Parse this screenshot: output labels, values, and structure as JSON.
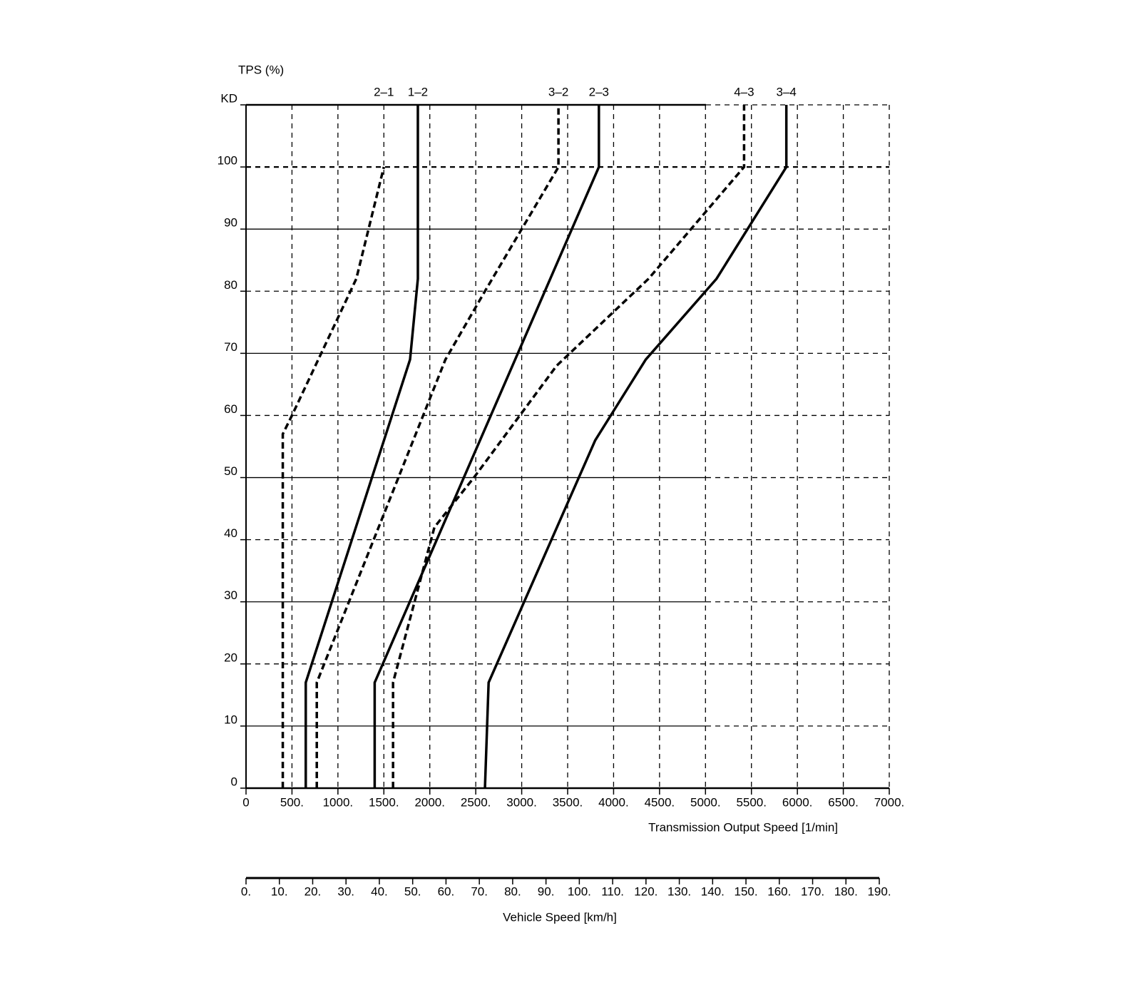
{
  "chart_data": {
    "type": "line",
    "y_axis_title": "TPS (%)",
    "x_axis_title": "Transmission Output Speed [1/min]",
    "x2_axis_title": "Vehicle Speed [km/h]",
    "xlim": [
      0,
      7000
    ],
    "xticks": [
      0,
      {
        "value": 500,
        "label": "500."
      },
      {
        "value": 1000,
        "label": "1000."
      },
      {
        "value": 1500,
        "label": "1500."
      },
      {
        "value": 2000,
        "label": "2000."
      },
      {
        "value": 2500,
        "label": "2500."
      },
      {
        "value": 3000,
        "label": "3000."
      },
      {
        "value": 3500,
        "label": "3500."
      },
      {
        "value": 4000,
        "label": "4000."
      },
      {
        "value": 4500,
        "label": "4500."
      },
      {
        "value": 5000,
        "label": "5000."
      },
      {
        "value": 5500,
        "label": "5500."
      },
      {
        "value": 6000,
        "label": "6000."
      },
      {
        "value": 6500,
        "label": "6500."
      },
      {
        "value": 7000,
        "label": "7000."
      }
    ],
    "ylim": [
      0,
      110
    ],
    "yticks": [
      0,
      10,
      20,
      30,
      40,
      50,
      60,
      70,
      80,
      90,
      100,
      {
        "value": 110,
        "label": "KD"
      }
    ],
    "x2lim": [
      0,
      190
    ],
    "x2ticks": [
      {
        "value": 0,
        "label": "0."
      },
      {
        "value": 10,
        "label": "10."
      },
      {
        "value": 20,
        "label": "20."
      },
      {
        "value": 30,
        "label": "30."
      },
      {
        "value": 40,
        "label": "40."
      },
      {
        "value": 50,
        "label": "50."
      },
      {
        "value": 60,
        "label": "60."
      },
      {
        "value": 70,
        "label": "70."
      },
      {
        "value": 80,
        "label": "80."
      },
      {
        "value": 90,
        "label": "90."
      },
      {
        "value": 100,
        "label": "100."
      },
      {
        "value": 110,
        "label": "110."
      },
      {
        "value": 120,
        "label": "120."
      },
      {
        "value": 130,
        "label": "130."
      },
      {
        "value": 140,
        "label": "140."
      },
      {
        "value": 150,
        "label": "150."
      },
      {
        "value": 160,
        "label": "160."
      },
      {
        "value": 170,
        "label": "170."
      },
      {
        "value": 180,
        "label": "180."
      },
      {
        "value": 190,
        "label": "190."
      }
    ],
    "grid": true,
    "series": [
      {
        "name": "2–1",
        "color": "#000000",
        "style": "dashed",
        "x": [
          400,
          400,
          500,
          1200,
          1500
        ],
        "values": [
          0,
          57,
          60,
          82,
          100
        ]
      },
      {
        "name": "1–2",
        "color": "#000000",
        "style": "solid",
        "x": [
          650,
          650,
          1785,
          1870,
          1870,
          1870
        ],
        "values": [
          0,
          17,
          69,
          82,
          100,
          110
        ]
      },
      {
        "name": "3–2",
        "color": "#000000",
        "style": "dashed",
        "x": [
          770,
          770,
          2170,
          2600,
          3400,
          3400
        ],
        "values": [
          0,
          17,
          69,
          80,
          100,
          110
        ]
      },
      {
        "name": "2–3",
        "color": "#000000",
        "style": "solid",
        "x": [
          1400,
          1400,
          3840,
          3840
        ],
        "values": [
          0,
          17,
          100,
          110
        ]
      },
      {
        "name": "4–3",
        "color": "#000000",
        "style": "dashed",
        "x": [
          1600,
          1600,
          2050,
          2480,
          3380,
          4380,
          5420,
          5420
        ],
        "values": [
          0,
          17,
          42,
          50,
          68,
          82,
          100,
          110
        ]
      },
      {
        "name": "3–4",
        "color": "#000000",
        "style": "solid",
        "x": [
          2600,
          2640,
          3800,
          4350,
          5120,
          5880,
          5880
        ],
        "values": [
          0,
          17,
          56,
          69,
          82,
          100,
          110
        ]
      }
    ]
  }
}
